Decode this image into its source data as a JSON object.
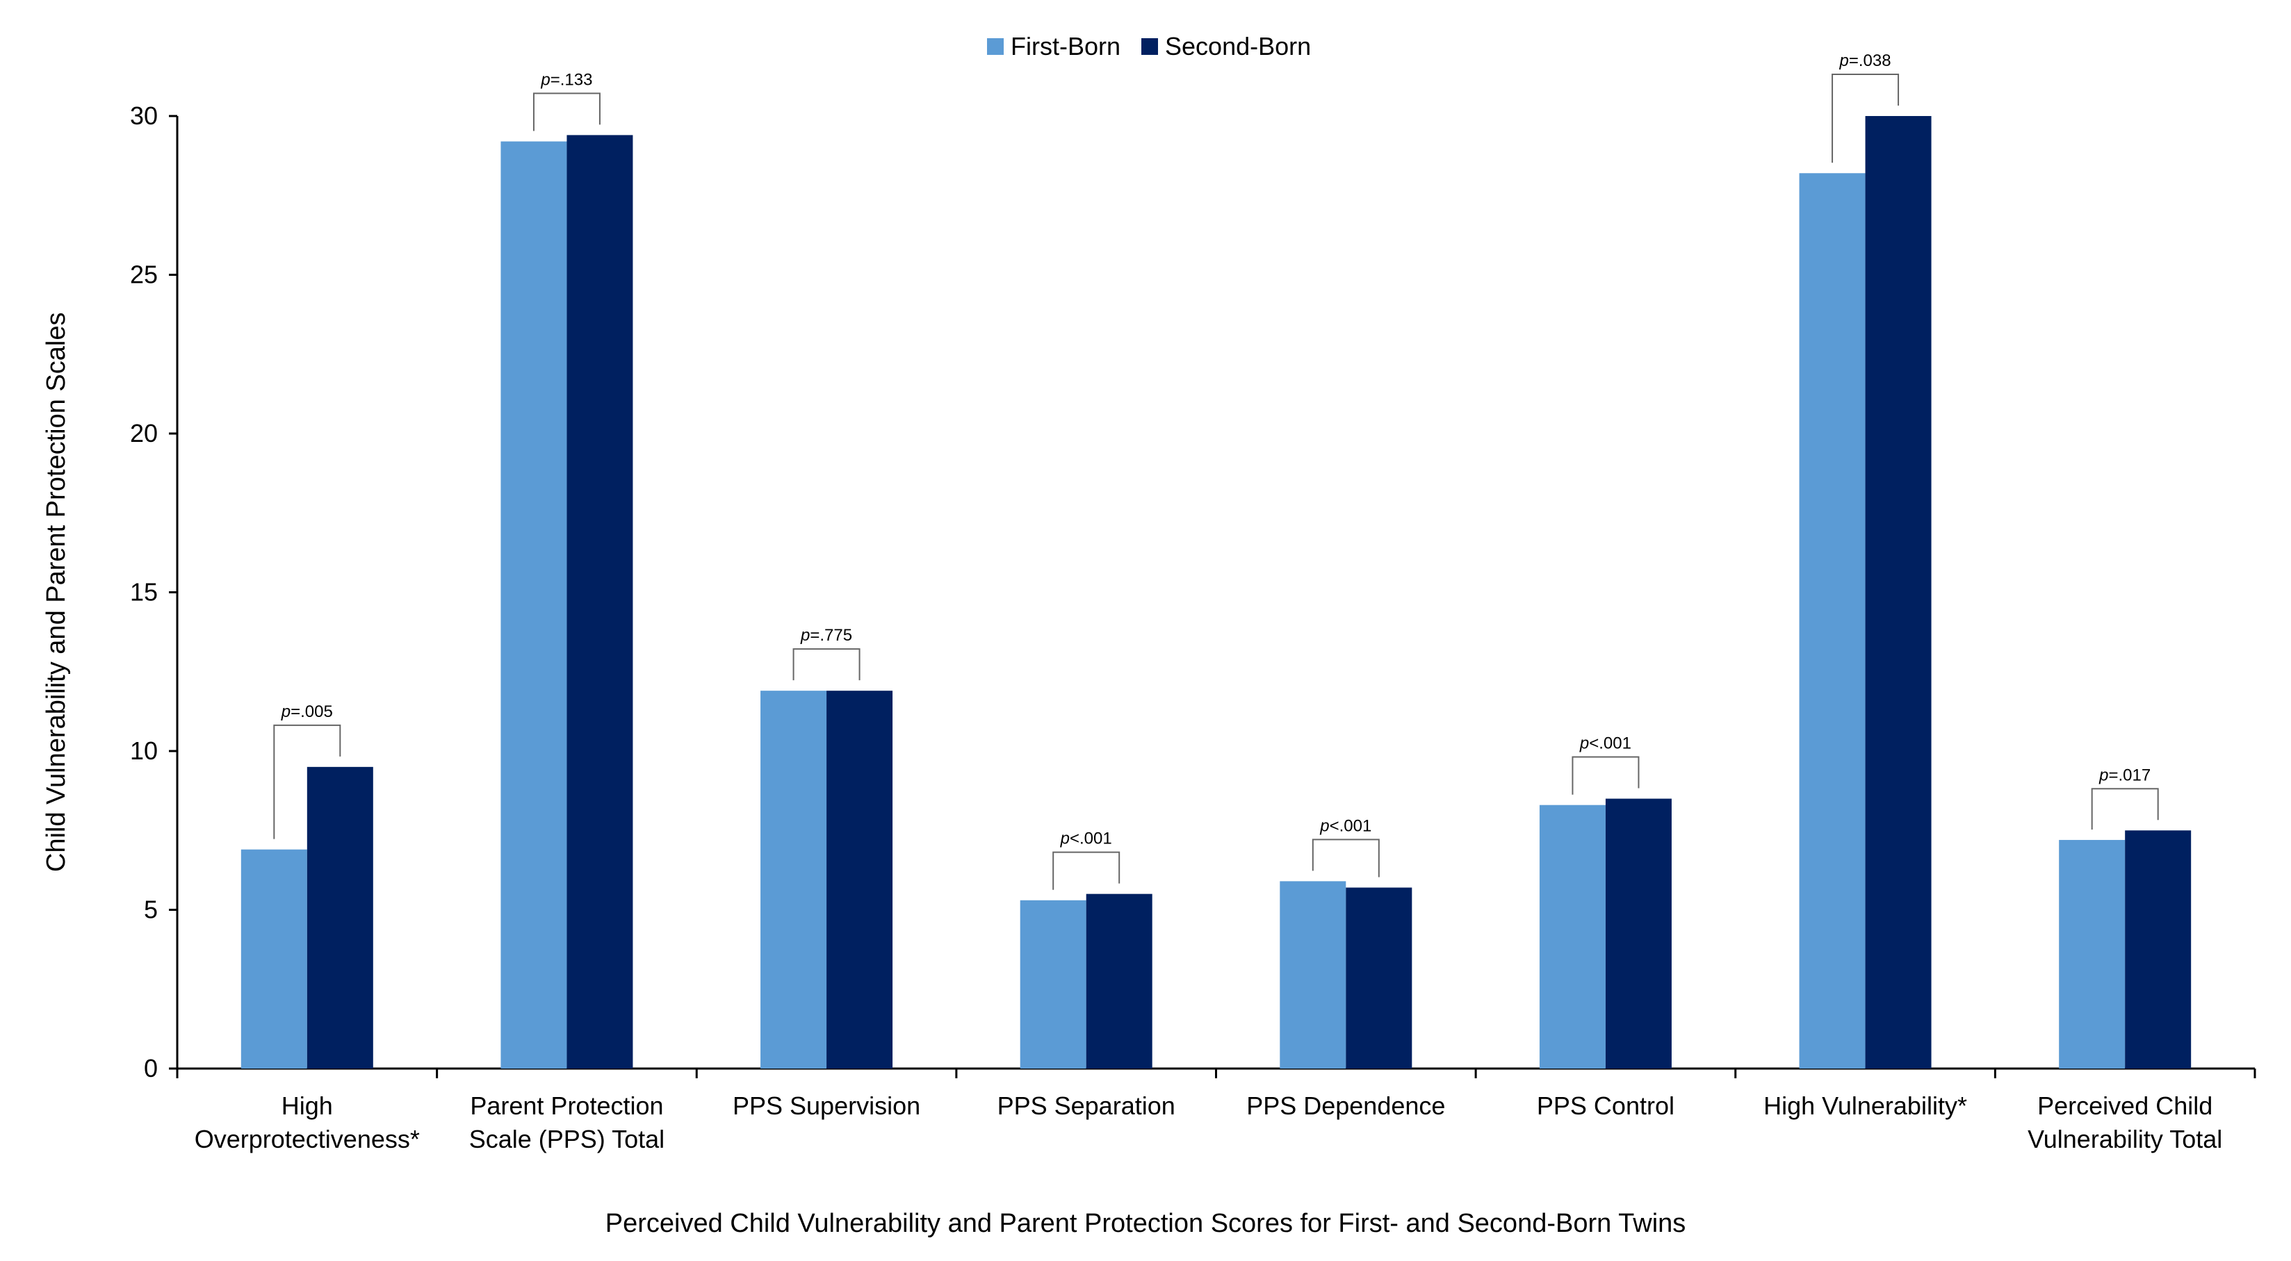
{
  "colors": {
    "first_born": "#5b9bd5",
    "second_born": "#002060",
    "axis": "#000000",
    "bracket": "#666666"
  },
  "chart_data": {
    "type": "bar",
    "xlabel": "Perceived Child Vulnerability and Parent Protection Scores for First- and Second-Born Twins",
    "ylabel": "Child Vulnerability and Parent Protection Scales",
    "ylim": [
      0,
      30
    ],
    "yticks": [
      0,
      5,
      10,
      15,
      20,
      25,
      30
    ],
    "grid": false,
    "legend_position": "top-center",
    "categories": [
      [
        "High",
        "Overprotectiveness*"
      ],
      [
        "Parent Protection",
        "Scale (PPS) Total"
      ],
      [
        "PPS Supervision"
      ],
      [
        "PPS Separation"
      ],
      [
        "PPS Dependence"
      ],
      [
        "PPS Control"
      ],
      [
        "High Vulnerability*"
      ],
      [
        "Perceived Child",
        "Vulnerability Total"
      ]
    ],
    "series": [
      {
        "name": "First-Born",
        "values": [
          6.9,
          29.2,
          11.9,
          5.3,
          5.9,
          8.3,
          28.2,
          7.2
        ]
      },
      {
        "name": "Second-Born",
        "values": [
          9.5,
          29.4,
          11.9,
          5.5,
          5.7,
          8.5,
          30.0,
          7.5
        ]
      }
    ],
    "annotations": [
      {
        "prefix": "p",
        "text": "=.005"
      },
      {
        "prefix": "p",
        "text": "=.133"
      },
      {
        "prefix": "p",
        "text": "=.775"
      },
      {
        "prefix": "p",
        "text": "<.001"
      },
      {
        "prefix": "p",
        "text": "<.001"
      },
      {
        "prefix": "p",
        "text": "<.001"
      },
      {
        "prefix": "p",
        "text": "=.038"
      },
      {
        "prefix": "p",
        "text": "=.017"
      }
    ]
  }
}
